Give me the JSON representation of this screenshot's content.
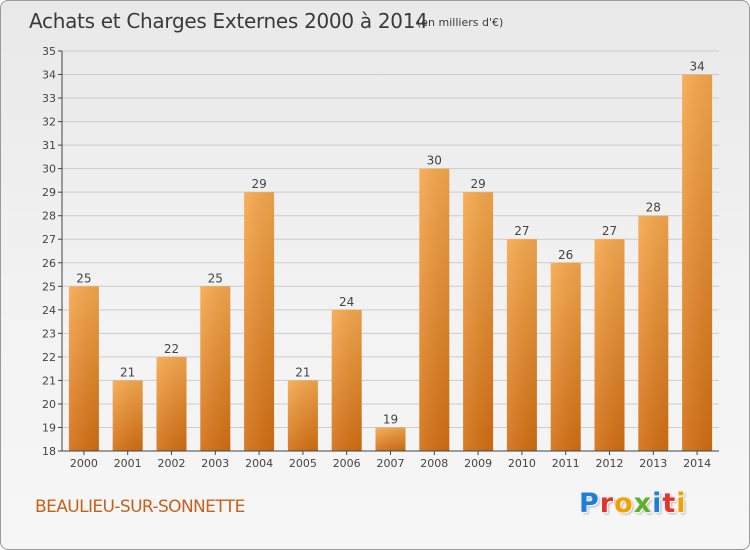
{
  "header": {
    "title": "Achats et Charges Externes 2000 à 2014",
    "subtitle": "(en milliers d'€)"
  },
  "footer": {
    "city": "BEAULIEU-SUR-SONNETTE",
    "logo_letters": [
      {
        "char": "P",
        "color": "#1e7fd6"
      },
      {
        "char": "r",
        "color": "#e5322d"
      },
      {
        "char": "o",
        "color": "#f2a100"
      },
      {
        "char": "x",
        "color": "#5bb22a"
      },
      {
        "char": "i",
        "color": "#1e7fd6"
      },
      {
        "char": "t",
        "color": "#e5322d"
      },
      {
        "char": "i",
        "color": "#f2a100"
      }
    ]
  },
  "colors": {
    "bar_light": "#f6a84d",
    "bar_dark": "#d26e12",
    "grid": "#cccccc",
    "axis": "#444444"
  },
  "chart_data": {
    "type": "bar",
    "title": "Achats et Charges Externes 2000 à 2014",
    "subtitle": "(en milliers d'€)",
    "categories": [
      "2000",
      "2001",
      "2002",
      "2003",
      "2004",
      "2005",
      "2006",
      "2007",
      "2008",
      "2009",
      "2010",
      "2011",
      "2012",
      "2013",
      "2014"
    ],
    "values": [
      25,
      21,
      22,
      25,
      29,
      21,
      24,
      19,
      30,
      29,
      27,
      26,
      27,
      28,
      34
    ],
    "ylim": [
      18,
      35
    ],
    "yticks": [
      18,
      19,
      20,
      21,
      22,
      23,
      24,
      25,
      26,
      27,
      28,
      29,
      30,
      31,
      32,
      33,
      34,
      35
    ],
    "grid": true,
    "xlabel": "",
    "ylabel": ""
  }
}
